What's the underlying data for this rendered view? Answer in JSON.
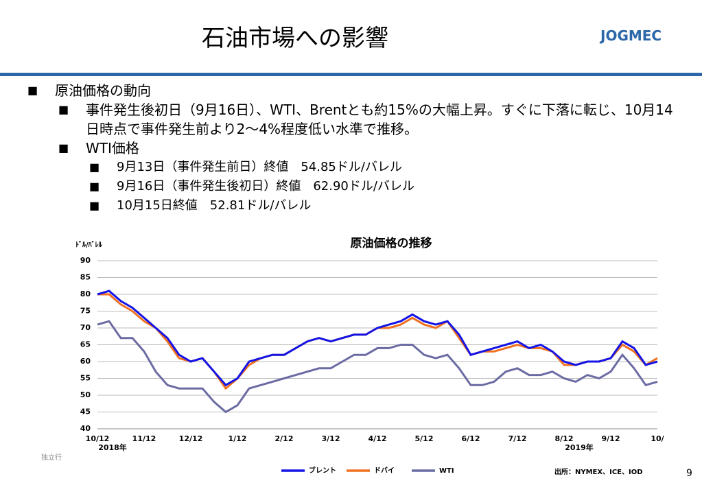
{
  "slide": {
    "title": "石油市場への影響",
    "logo": "JOGMEC",
    "bullets": [
      {
        "text": "原油価格の動向",
        "children": [
          {
            "text": "事件発生後初日（9月16日）、WTI、Brentとも約15%の大幅上昇。すぐに下落に転じ、10月14日時点で事件発生前より2～4%程度低い水準で推移。",
            "children": []
          },
          {
            "text": "WTI価格",
            "children": [
              {
                "text": "9月13日（事件発生前日）終値　54.85ドル/バレル"
              },
              {
                "text": "9月16日（事件発生後初日）終値　62.90ドル/バレル"
              },
              {
                "text": "10月15日終値　52.81ドル/バレル"
              }
            ]
          }
        ]
      }
    ],
    "footer": "独立行",
    "source": "出所：NYMEX、ICE、IOD",
    "page": "9"
  },
  "chart_data": {
    "type": "line",
    "title": "原油価格の推移",
    "y_label": "ﾄﾞﾙ/ﾊﾞﾚﾙ",
    "categories": [
      "10/12",
      null,
      null,
      null,
      "11/12",
      null,
      null,
      null,
      "12/12",
      null,
      null,
      null,
      "1/12",
      null,
      null,
      null,
      "2/12",
      null,
      null,
      null,
      "3/12",
      null,
      null,
      null,
      "4/12",
      null,
      null,
      null,
      "5/12",
      null,
      null,
      null,
      "6/12",
      null,
      null,
      null,
      "7/12",
      null,
      null,
      null,
      "8/12",
      null,
      null,
      null,
      "9/12",
      null,
      null,
      null,
      "10/"
    ],
    "year_labels": [
      {
        "label": "2018年",
        "at": "10/12"
      },
      {
        "label": "2019年",
        "at": "8/12"
      }
    ],
    "ylim": [
      40,
      90
    ],
    "yticks": [
      40,
      45,
      50,
      55,
      60,
      65,
      70,
      75,
      80,
      85,
      90
    ],
    "grid": true,
    "legend": "bottom",
    "series": [
      {
        "name": "ブレント",
        "color": "#1414e6",
        "values": [
          80,
          81,
          78,
          76,
          73,
          70,
          67,
          62,
          60,
          61,
          57,
          53,
          55,
          60,
          61,
          62,
          62,
          64,
          66,
          67,
          66,
          67,
          68,
          68,
          70,
          71,
          72,
          74,
          72,
          71,
          72,
          68,
          62,
          63,
          64,
          65,
          66,
          64,
          65,
          63,
          60,
          59,
          60,
          60,
          61,
          66,
          64,
          59,
          60
        ]
      },
      {
        "name": "ドバイ",
        "color": "#f07020",
        "values": [
          80,
          80,
          77,
          75,
          72,
          70,
          66,
          61,
          60,
          61,
          57,
          52,
          55,
          59,
          61,
          62,
          62,
          64,
          66,
          67,
          66,
          67,
          68,
          68,
          70,
          70,
          71,
          73,
          71,
          70,
          72,
          67,
          62,
          63,
          63,
          64,
          65,
          64,
          64,
          63,
          59,
          59,
          60,
          60,
          61,
          65,
          63,
          59,
          61
        ]
      },
      {
        "name": "WTI",
        "color": "#6b6ba3",
        "values": [
          71,
          72,
          67,
          67,
          63,
          57,
          53,
          52,
          52,
          52,
          48,
          45,
          47,
          52,
          53,
          54,
          55,
          56,
          57,
          58,
          58,
          60,
          62,
          62,
          64,
          64,
          65,
          65,
          62,
          61,
          62,
          58,
          53,
          53,
          54,
          57,
          58,
          56,
          56,
          57,
          55,
          54,
          56,
          55,
          57,
          62,
          58,
          53,
          54
        ]
      }
    ]
  }
}
